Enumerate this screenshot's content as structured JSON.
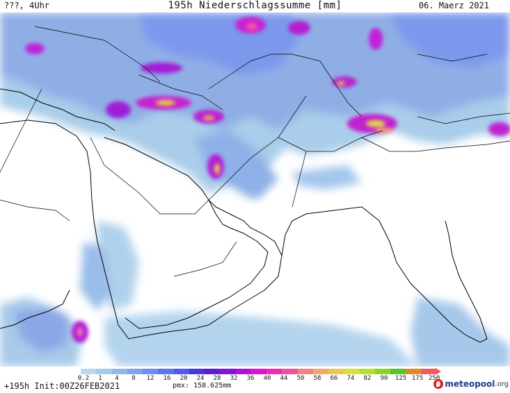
{
  "header": {
    "left_text": "???, 4Uhr",
    "title": "195h Niederschlagssumme [mm]",
    "date": "06. Maerz 2021"
  },
  "footer": {
    "forecast_step": "+195h",
    "init_text": "Init:00Z26FEB2021",
    "pmax_text": "pmx: 158.625mm",
    "brand_main": "meteopool",
    "brand_suffix": ".org"
  },
  "legend": {
    "labels": [
      "0.2",
      "1",
      "4",
      "8",
      "12",
      "16",
      "20",
      "24",
      "28",
      "32",
      "36",
      "40",
      "44",
      "50",
      "58",
      "66",
      "74",
      "82",
      "90",
      "125",
      "175",
      "250"
    ],
    "colors": [
      "#b8d8ec",
      "#a4cbe8",
      "#90b9e6",
      "#7fa4e8",
      "#6d8ef0",
      "#5b74f2",
      "#4c5af0",
      "#4438e0",
      "#5a1ed0",
      "#8412d8",
      "#b212d8",
      "#dc14d0",
      "#f02ab8",
      "#f0509c",
      "#f08282",
      "#f0a86a",
      "#e8c84e",
      "#d8e03a",
      "#b8e02a",
      "#8ad426",
      "#58c428",
      "#e8842a",
      "#f05a5a"
    ]
  },
  "map": {
    "land_color": "#ffffff",
    "border_color": "#000000"
  }
}
